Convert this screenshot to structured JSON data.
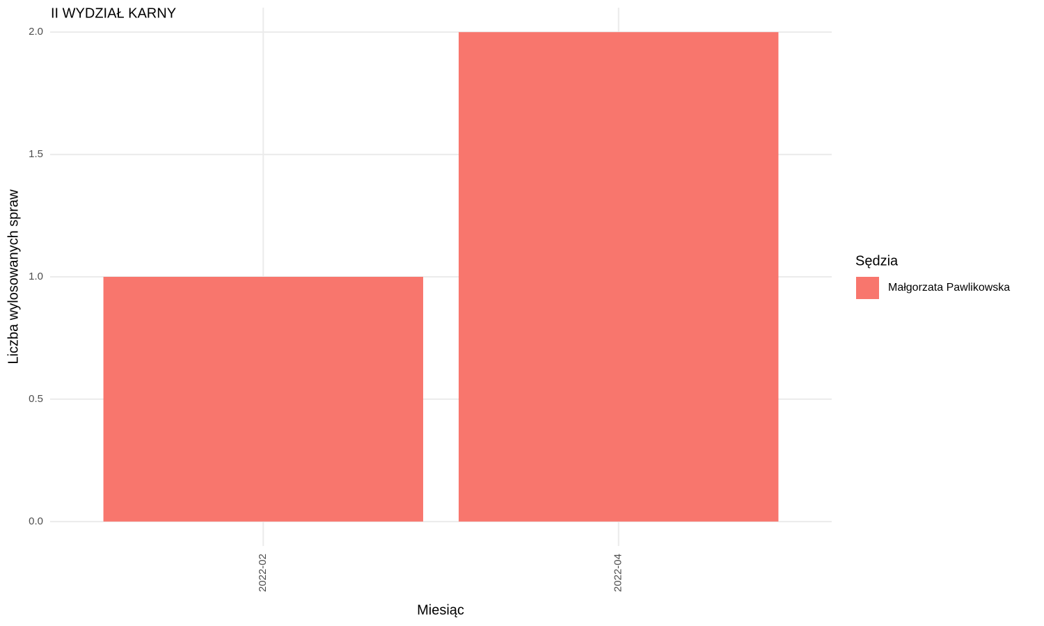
{
  "chart_data": {
    "type": "bar",
    "title": "II WYDZIAŁ KARNY",
    "x_label": "Miesiąc",
    "y_label": "Liczba wylosowanych spraw",
    "categories": [
      "2022-02",
      "2022-04"
    ],
    "series": [
      {
        "name": "Małgorzata Pawlikowska",
        "color": "#F8766D",
        "values": [
          1,
          2
        ]
      }
    ],
    "legend_title": "Sędzia",
    "ylim": [
      -0.1,
      2.1
    ],
    "yticks": [
      {
        "value": 0,
        "label": "0.0"
      },
      {
        "value": 0.5,
        "label": "0.5"
      },
      {
        "value": 1,
        "label": "1.0"
      },
      {
        "value": 1.5,
        "label": "1.5"
      },
      {
        "value": 2,
        "label": "2.0"
      }
    ],
    "grid": true
  }
}
